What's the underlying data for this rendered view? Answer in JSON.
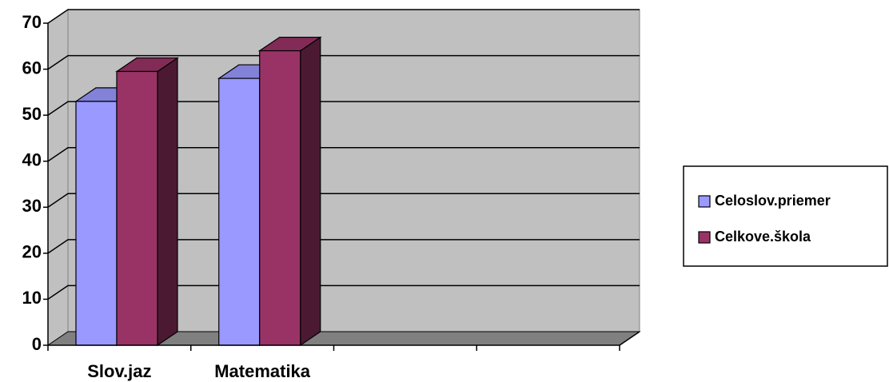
{
  "chart_data": {
    "type": "bar3d",
    "categories": [
      "Slov.jaz",
      "Matematika",
      null,
      null
    ],
    "series": [
      {
        "name": "Celoslov.priemer",
        "color": "#9999ff",
        "values": [
          53,
          58,
          null,
          null
        ]
      },
      {
        "name": "Celkove.škola",
        "color": "#993366",
        "values": [
          59.5,
          64,
          null,
          null
        ]
      }
    ],
    "ylim": [
      0,
      70
    ],
    "yticks": [
      0,
      10,
      20,
      30,
      40,
      50,
      60,
      70
    ],
    "grid": true,
    "legend": "right"
  }
}
